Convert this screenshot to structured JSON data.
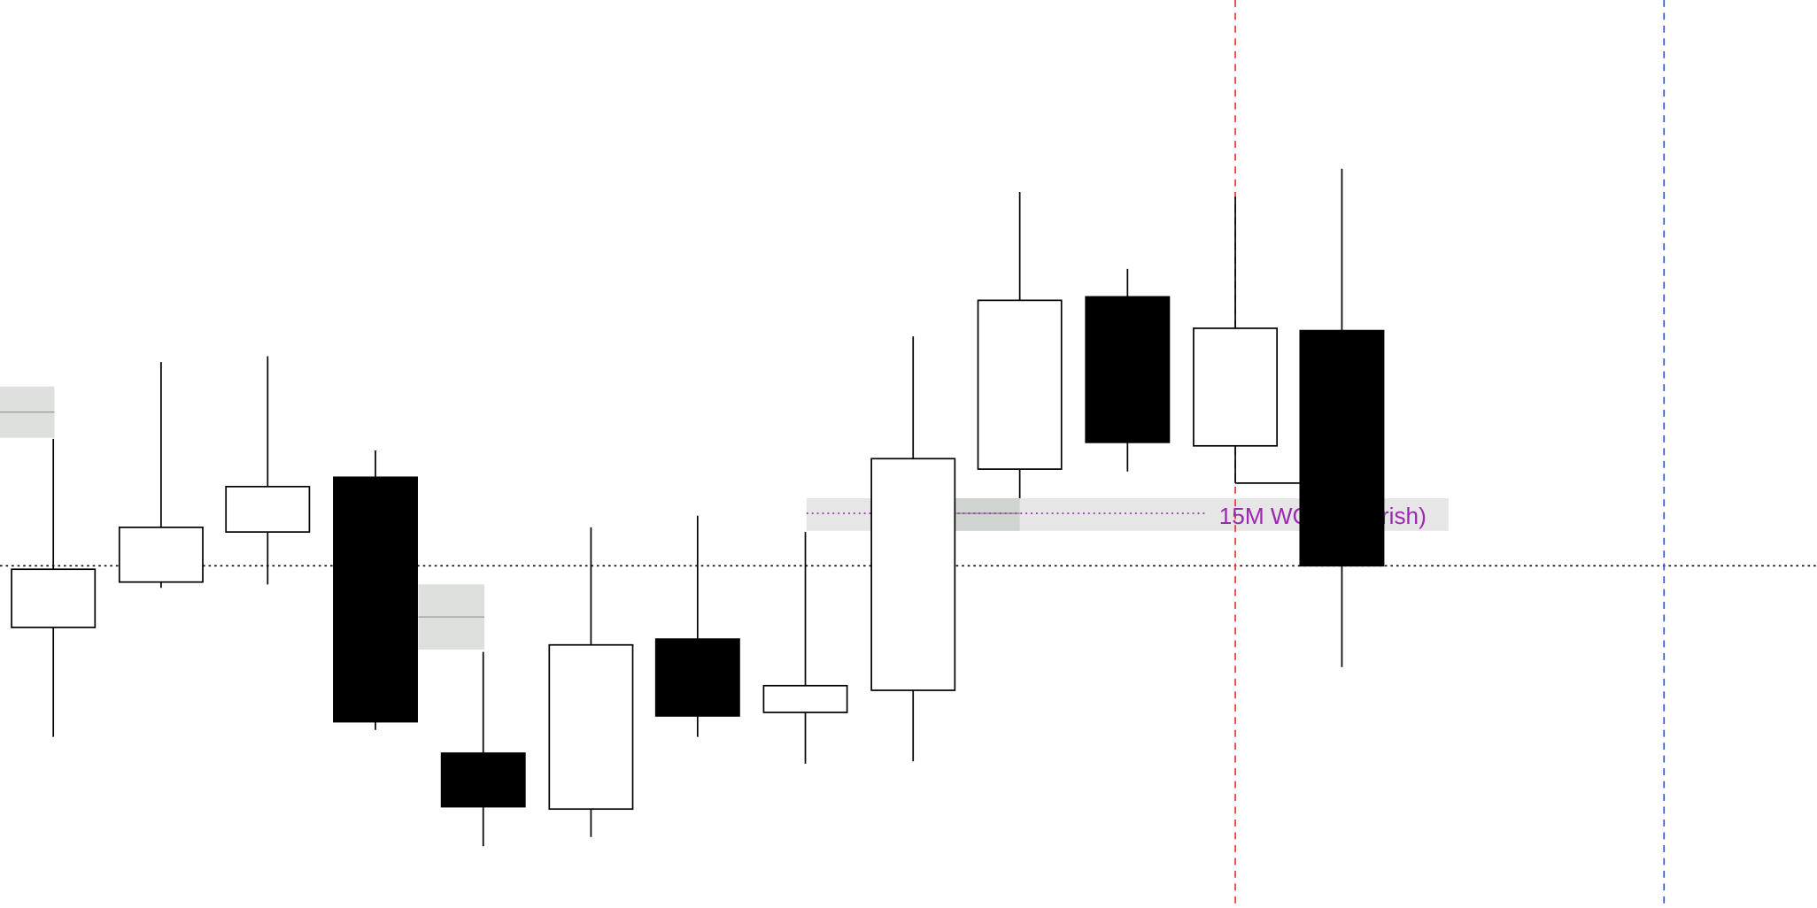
{
  "chart_data": {
    "type": "candlestick",
    "title": "",
    "candles": [
      {
        "open": 241,
        "close": 291,
        "high": 403,
        "low": 147,
        "direction": "bullish"
      },
      {
        "open": 280,
        "close": 327,
        "high": 469,
        "low": 275,
        "direction": "bullish"
      },
      {
        "open": 323,
        "close": 362,
        "high": 474,
        "low": 278,
        "direction": "bullish"
      },
      {
        "open": 370,
        "close": 160,
        "high": 393,
        "low": 153,
        "direction": "bearish"
      },
      {
        "open": 133,
        "close": 87,
        "high": 220,
        "low": 53,
        "direction": "bearish"
      },
      {
        "open": 85,
        "close": 226,
        "high": 327,
        "low": 61,
        "direction": "bullish"
      },
      {
        "open": 231,
        "close": 165,
        "high": 337,
        "low": 147,
        "direction": "bearish"
      },
      {
        "open": 168,
        "close": 191,
        "high": 323,
        "low": 124,
        "direction": "bullish"
      },
      {
        "open": 187,
        "close": 386,
        "high": 491,
        "low": 126,
        "direction": "bullish"
      },
      {
        "open": 377,
        "close": 522,
        "high": 615,
        "low": 352,
        "direction": "bullish"
      },
      {
        "open": 525,
        "close": 400,
        "high": 549,
        "low": 375,
        "direction": "bearish"
      },
      {
        "open": 397,
        "close": 498,
        "high": 611,
        "low": 365,
        "direction": "bullish"
      },
      {
        "open": 496,
        "close": 294,
        "high": 635,
        "low": 207,
        "direction": "bearish"
      }
    ],
    "zones": [
      {
        "top": 448,
        "bottom": 404,
        "mid": 426
      },
      {
        "top": 278,
        "bottom": 222,
        "mid": 250
      }
    ],
    "annotation": {
      "label": "15M WOB (Bearish)",
      "level": 339,
      "top": 352,
      "bottom": 324,
      "color": "#9c27b0"
    },
    "horizontal_level": 294,
    "vertical_lines": [
      {
        "color": "#e53935",
        "style": "dashed"
      },
      {
        "color": "#1e5bff",
        "style": "dashed"
      }
    ],
    "colors": {
      "bullish": "#ffffff",
      "bearish": "#000000",
      "zone": "#dde0dd",
      "band": "#e6e6e6"
    }
  }
}
